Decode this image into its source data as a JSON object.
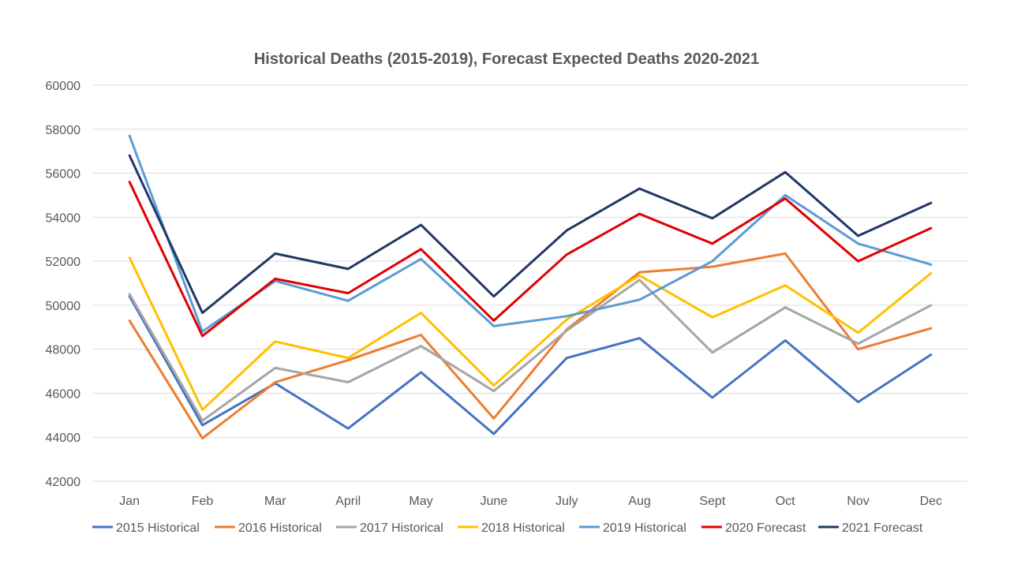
{
  "chart_data": {
    "type": "line",
    "title": "Historical  Deaths (2015-2019),  Forecast Expected Deaths 2020-2021",
    "xlabel": "",
    "ylabel": "",
    "categories": [
      "Jan",
      "Feb",
      "Mar",
      "April",
      "May",
      "June",
      "July",
      "Aug",
      "Sept",
      "Oct",
      "Nov",
      "Dec"
    ],
    "ylim": [
      42000,
      60000
    ],
    "yticks": [
      "42000",
      "44000",
      "46000",
      "48000",
      "50000",
      "52000",
      "54000",
      "56000",
      "58000",
      "60000"
    ],
    "grid": true,
    "legend_position": "bottom",
    "series": [
      {
        "name": "2015 Historical",
        "color": "#4472C4",
        "values": [
          50400,
          44550,
          46450,
          44400,
          46950,
          44150,
          47600,
          48500,
          45800,
          48400,
          45600,
          47750
        ]
      },
      {
        "name": "2016 Historical",
        "color": "#ED7D31",
        "values": [
          49300,
          43950,
          46500,
          47500,
          48650,
          44850,
          48900,
          51500,
          51750,
          52350,
          48000,
          48950
        ]
      },
      {
        "name": "2017 Historical",
        "color": "#A5A5A5",
        "values": [
          50500,
          44750,
          47150,
          46500,
          48150,
          46100,
          48850,
          51150,
          47850,
          49900,
          48250,
          50000
        ]
      },
      {
        "name": "2018 Historical",
        "color": "#FFC000",
        "values": [
          52150,
          45250,
          48350,
          47600,
          49650,
          46350,
          49350,
          51350,
          49450,
          50900,
          48750,
          51450
        ]
      },
      {
        "name": "2019 Historical",
        "color": "#5B9BD5",
        "values": [
          57700,
          48800,
          51100,
          50200,
          52100,
          49050,
          49500,
          50250,
          52000,
          55000,
          52800,
          51850
        ]
      },
      {
        "name": "2020 Forecast",
        "color": "#E00000",
        "values": [
          55600,
          48600,
          51200,
          50550,
          52550,
          49300,
          52300,
          54150,
          52800,
          54850,
          52000,
          53500
        ]
      },
      {
        "name": "2021 Forecast",
        "color": "#203864",
        "values": [
          56800,
          49650,
          52350,
          51650,
          53650,
          50400,
          53400,
          55300,
          53950,
          56050,
          53150,
          54650
        ]
      }
    ]
  }
}
